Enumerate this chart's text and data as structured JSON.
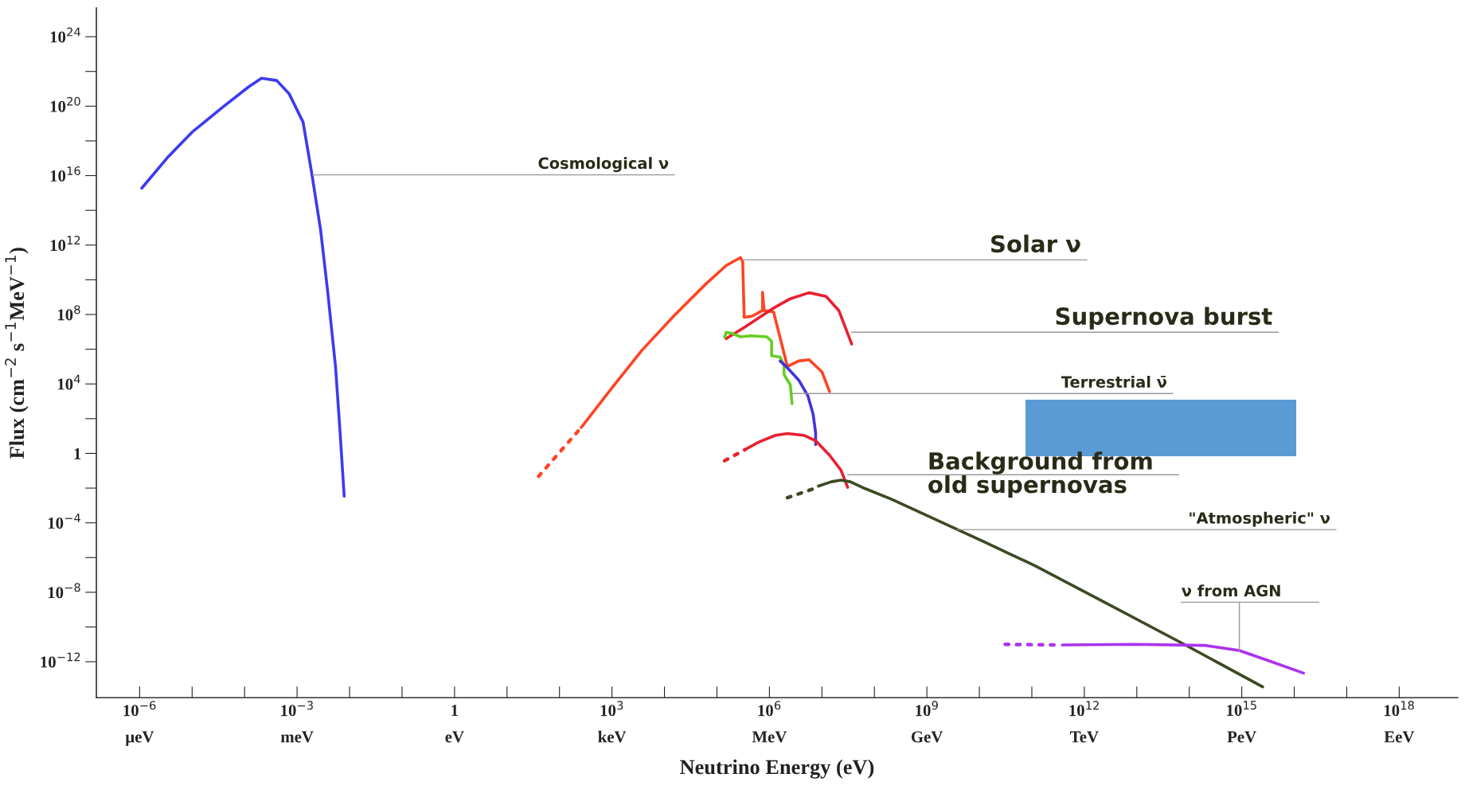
{
  "chart_data": {
    "type": "line",
    "xlabel": "Neutrino Energy (eV)",
    "ylabel": "Flux (cm$^{−2}$ s$^{−1}$MeV$^{−1}$)",
    "log": "xy",
    "grid": false,
    "marker": "none",
    "xlim": [
      1.5e-07,
      1.3e+19
    ],
    "ylim": [
      8.5e-15,
      4.5e+25
    ],
    "xticks": [
      {
        "value": 1e-06,
        "label": "10$^{−6}$"
      },
      {
        "value": 1e-05,
        "label": null
      },
      {
        "value": 0.0001,
        "label": null
      },
      {
        "value": 0.001,
        "label": "10$^{−3}$"
      },
      {
        "value": 0.01,
        "label": null
      },
      {
        "value": 0.1,
        "label": null
      },
      {
        "value": 1,
        "label": "1"
      },
      {
        "value": 10.0,
        "label": null
      },
      {
        "value": 100.0,
        "label": null
      },
      {
        "value": 1000.0,
        "label": "10$^{3}$"
      },
      {
        "value": 10000.0,
        "label": null
      },
      {
        "value": 100000.0,
        "label": null
      },
      {
        "value": 1000000.0,
        "label": "10$^{6}$"
      },
      {
        "value": 10000000.0,
        "label": null
      },
      {
        "value": 100000000.0,
        "label": null
      },
      {
        "value": 1000000000.0,
        "label": "10$^{9}$"
      },
      {
        "value": 10000000000.0,
        "label": null
      },
      {
        "value": 100000000000.0,
        "label": null
      },
      {
        "value": 1000000000000.0,
        "label": "10$^{12}$"
      },
      {
        "value": 10000000000000.0,
        "label": null
      },
      {
        "value": 100000000000000.0,
        "label": null
      },
      {
        "value": 1000000000000000.0,
        "label": "10$^{15}$"
      },
      {
        "value": 1e+16,
        "label": null
      },
      {
        "value": 1e+17,
        "label": null
      },
      {
        "value": 1e+18,
        "label": "10$^{18}$"
      }
    ],
    "yticks": [
      {
        "value": 1e-12,
        "label": "10$^{−12}$"
      },
      {
        "value": 1e-10,
        "label": null
      },
      {
        "value": 1e-08,
        "label": "10$^{−8}$"
      },
      {
        "value": 1e-06,
        "label": null
      },
      {
        "value": 0.0001,
        "label": "10$^{−4}$"
      },
      {
        "value": 0.01,
        "label": null
      },
      {
        "value": 1,
        "label": "1"
      },
      {
        "value": 100.0,
        "label": null
      },
      {
        "value": 10000.0,
        "label": "10$^{4}$"
      },
      {
        "value": 1000000.0,
        "label": null
      },
      {
        "value": 100000000.0,
        "label": "10$^{8}$"
      },
      {
        "value": 10000000000.0,
        "label": null
      },
      {
        "value": 1000000000000.0,
        "label": "10$^{12}$"
      },
      {
        "value": 100000000000000.0,
        "label": null
      },
      {
        "value": 1e+16,
        "label": "10$^{16}$"
      },
      {
        "value": 1e+18,
        "label": null
      },
      {
        "value": 1e+20,
        "label": "10$^{20}$"
      },
      {
        "value": 1e+22,
        "label": null
      },
      {
        "value": 1e+24,
        "label": "10$^{24}$"
      }
    ],
    "series": [
      {
        "color": "#3b3bf0",
        "line_style": "solid",
        "x": [
          1.1e-06,
          3.4e-06,
          1e-05,
          3.9e-05,
          0.00012,
          0.00021,
          0.00041,
          0.00071,
          0.0013,
          0.0019,
          0.0028,
          0.0038,
          0.0054,
          0.0066,
          0.0079
        ],
        "values": [
          1900000000000000.0,
          1.1e+17,
          3.2e+18,
          9.1e+19,
          1.3e+21,
          4.1e+21,
          3e+21,
          5e+20,
          1.2e+19,
          1.4e+16,
          7900000000000.0,
          2600000000.0,
          100000.0,
          16,
          0.0034
        ]
      },
      {
        "color": "#ff4422",
        "line_style": "dotted",
        "x": [
          40,
          260
        ],
        "values": [
          0.048,
          31
        ]
      },
      {
        "color": "#ff4422",
        "line_style": "solid",
        "x": [
          260,
          1000.0,
          3700.0,
          15000.0,
          61000.0,
          150000.0,
          280000.0,
          310000.0,
          330000.0,
          470000.0,
          740000.0,
          740000.0,
          790000.0,
          1200000.0,
          2200000.0,
          3600000.0,
          5700000.0,
          10000000.0,
          14000000.0
        ],
        "values": [
          31,
          6000.0,
          850000.0,
          81000000.0,
          5600000000.0,
          66000000000.0,
          190000000000.0,
          110000000000.0,
          69000000.0,
          81000000.0,
          170000000.0,
          1900000000.0,
          170000000.0,
          140000000.0,
          100000.0,
          210000.0,
          250000.0,
          50000.0,
          3600.0
        ]
      },
      {
        "color": "#e82030",
        "line_style": "solid",
        "x": [
          150000.0,
          350000.0,
          1100000.0,
          2500000.0,
          5700000.0,
          12000000.0,
          21000000.0,
          37000000.0
        ],
        "values": [
          4100000.0,
          20000000.0,
          200000000.0,
          810000000.0,
          1800000000.0,
          1100000000.0,
          170000000.0,
          2000000.0
        ]
      },
      {
        "color": "#66cc22",
        "line_style": "solid",
        "x": [
          140000.0,
          150000.0,
          190000.0,
          280000.0,
          440000.0,
          890000.0,
          1100000.0,
          1100000.0,
          1600000.0,
          1900000.0,
          1900000.0,
          2500000.0,
          2700000.0
        ],
        "values": [
          4900000.0,
          9300000.0,
          8300000.0,
          5200000.0,
          5900000.0,
          5200000.0,
          2900000.0,
          420000.0,
          350000.0,
          120000.0,
          35000.0,
          8700.0,
          740.0
        ]
      },
      {
        "color": "#4433dd",
        "line_style": "solid",
        "x": [
          1600000.0,
          2200000.0,
          3600000.0,
          5400000.0,
          6800000.0,
          7600000.0,
          7600000.0
        ],
        "values": [
          210000.0,
          85000.0,
          17000.0,
          2100.0,
          180.0,
          15,
          3.2
        ]
      },
      {
        "color": "#e82030",
        "line_style": "dotted",
        "x": [
          140000.0,
          350000.0
        ],
        "values": [
          0.38,
          1.7
        ]
      },
      {
        "color": "#e82030",
        "line_style": "solid",
        "x": [
          350000.0,
          630000.0,
          1300000.0,
          2200000.0,
          4500000.0,
          7600000.0,
          14000000.0,
          23000000.0,
          31000000.0
        ],
        "values": [
          1.7,
          4.5,
          11,
          14,
          11,
          5.4,
          0.78,
          0.11,
          0.011
        ]
      },
      {
        "color": "#3d4a22",
        "line_style": "dotted",
        "x": [
          2200000.0,
          7200000.0
        ],
        "values": [
          0.0028,
          0.0095
        ]
      },
      {
        "color": "#3d4a22",
        "line_style": "solid",
        "x": [
          8600000.0,
          15000000.0,
          23000000.0,
          35000000.0,
          66000000.0,
          210000000.0,
          12000000000.0,
          110000000000.0,
          1600000000000.0,
          80000000000000.0,
          2500000000000000.0
        ],
        "values": [
          0.013,
          0.023,
          0.029,
          0.023,
          0.0095,
          0.0023,
          8.3e-06,
          3.6e-07,
          5.2e-09,
          1e-11,
          3.6e-14
        ]
      },
      {
        "color": "#aa33ee",
        "line_style": "dotted",
        "x": [
          31000000000.0,
          290000000000.0
        ],
        "values": [
          1e-11,
          9.3e-12
        ]
      },
      {
        "color": "#aa33ee",
        "line_style": "solid",
        "x": [
          380000000000.0,
          10000000000000.0,
          200000000000000.0,
          900000000000000.0,
          3400000000000000.0,
          1.5e+16
        ],
        "values": [
          9.3e-12,
          1e-11,
          8.7e-12,
          4.4e-12,
          1.1e-12,
          2.2e-13
        ]
      }
    ],
    "annotations": [
      {
        "text": "Cosmological ν",
        "x": 0.002,
        "y": 1.1e+16
      },
      {
        "text": "Solar ν",
        "x": 310000.0,
        "y": 140000000000.0
      },
      {
        "text": "Supernova burst",
        "x": 37000000.0,
        "y": 9500000.0
      },
      {
        "text": "Terrestrial ν̄",
        "x": 2700000.0,
        "y": 2800.0
      },
      {
        "text": "Background from\nold supernovas",
        "x": 31000000.0,
        "y": 0.059
      },
      {
        "text": "\"Atmospheric\" ν",
        "x": 3800000000.0,
        "y": 4.1e-05
      },
      {
        "text": "ν from AGN",
        "x": 900000000000000.0,
        "y": 4.4e-12
      },
      "µeV",
      "meV",
      "eV",
      "keV",
      "MeV",
      "GeV",
      "TeV",
      "PeV",
      "EeV"
    ]
  }
}
